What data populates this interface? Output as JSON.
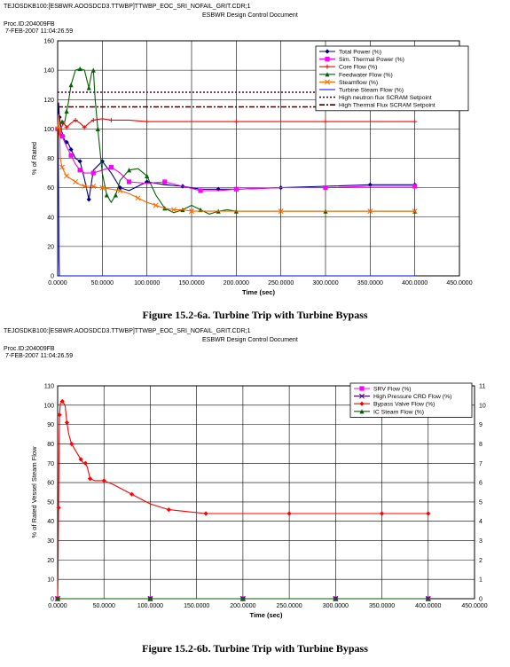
{
  "document": {
    "chart_a": {
      "header_path": "TEJOSDKB100:[ESBWR.AOOSDCD3.TTWBP]TTWBP_EOC_SRI_NOFAIL_GRIT.CDR;1",
      "header_doc": "ESBWR Design Control Document",
      "header_proc": "Proc.ID:204009FB",
      "header_date": " 7-FEB-2007 11:04:26.59",
      "caption": "Figure 15.2-6a.  Turbine Trip with Turbine Bypass"
    },
    "chart_b": {
      "header_path": "TEJOSDKB100:[ESBWR.AOOSDCD3.TTWBP]TTWBP_EOC_SRI_NOFAIL_GRIT.CDR;1",
      "header_doc": "ESBWR Design Control Document",
      "header_proc": "Proc.ID:204009FB",
      "header_date": " 7-FEB-2007 11:04:26.59",
      "caption": "Figure 15.2-6b.  Turbine Trip with Turbine Bypass"
    }
  },
  "chart_data": [
    {
      "type": "line",
      "xlabel": "Time (sec)",
      "ylabel": "% of Rated",
      "xlim": [
        0,
        450
      ],
      "ylim": [
        0,
        160
      ],
      "x_ticks": [
        "0.0000",
        "50.0000",
        "100.0000",
        "150.0000",
        "200.0000",
        "250.0000",
        "300.0000",
        "350.0000",
        "400.0000",
        "450.0000"
      ],
      "y_ticks": [
        "0",
        "20",
        "40",
        "60",
        "80",
        "100",
        "120",
        "140",
        "160"
      ],
      "grid": true,
      "legend_position": "top-right",
      "series": [
        {
          "name": "Total Power (%)",
          "color": "#000080",
          "marker": "diamond",
          "x": [
            0,
            1,
            2,
            4,
            6,
            8,
            10,
            12,
            15,
            20,
            25,
            30,
            35,
            40,
            50,
            60,
            70,
            80,
            100,
            120,
            140,
            160,
            180,
            200,
            250,
            300,
            350,
            400
          ],
          "y": [
            100,
            118,
            108,
            100,
            95,
            92,
            91,
            90,
            86,
            80,
            78,
            66,
            52,
            72,
            78,
            70,
            60,
            58,
            64,
            62,
            61,
            59,
            59,
            59,
            60,
            61,
            62,
            62
          ]
        },
        {
          "name": "Sim. Thermal Power (%)",
          "color": "#ff00ff",
          "marker": "square",
          "x": [
            0,
            2,
            5,
            10,
            15,
            20,
            25,
            30,
            40,
            50,
            60,
            70,
            80,
            100,
            120,
            140,
            160,
            180,
            200,
            250,
            300,
            350,
            400
          ],
          "y": [
            100,
            99,
            95,
            88,
            82,
            76,
            72,
            70,
            70,
            72,
            74,
            70,
            64,
            63,
            64,
            61,
            58,
            58,
            59,
            60,
            60,
            61,
            61
          ]
        },
        {
          "name": "Core Flow (%)",
          "color": "#ff0000",
          "marker": "plus",
          "x": [
            0,
            1,
            2,
            4,
            6,
            8,
            10,
            15,
            20,
            25,
            30,
            35,
            40,
            50,
            60,
            80,
            100,
            150,
            200,
            250,
            300,
            350,
            400
          ],
          "y": [
            100,
            98,
            96,
            100,
            104,
            103,
            101,
            104,
            106,
            104,
            101,
            104,
            106,
            107,
            106,
            106,
            105,
            105,
            105,
            105,
            105,
            105,
            105
          ]
        },
        {
          "name": "Feedwater Flow (%)",
          "color": "#006400",
          "marker": "triangle",
          "x": [
            0,
            2,
            5,
            8,
            10,
            12,
            15,
            20,
            25,
            30,
            35,
            38,
            40,
            42,
            45,
            50,
            55,
            60,
            65,
            70,
            80,
            90,
            100,
            110,
            120,
            130,
            140,
            150,
            160,
            170,
            180,
            190,
            200,
            250,
            300,
            350,
            400
          ],
          "y": [
            100,
            103,
            105,
            105,
            112,
            118,
            130,
            140,
            141,
            140,
            128,
            138,
            140,
            120,
            100,
            70,
            55,
            50,
            55,
            65,
            72,
            73,
            68,
            55,
            46,
            43,
            45,
            48,
            45,
            42,
            44,
            45,
            44,
            44,
            44,
            44,
            44
          ]
        },
        {
          "name": "Steamflow (%)",
          "color": "#ff6600",
          "marker": "x",
          "x": [
            0,
            1,
            2,
            3,
            5,
            8,
            10,
            15,
            20,
            25,
            30,
            35,
            40,
            45,
            50,
            60,
            70,
            80,
            90,
            100,
            110,
            120,
            130,
            140,
            150,
            200,
            250,
            300,
            350,
            400
          ],
          "y": [
            100,
            110,
            100,
            80,
            74,
            70,
            68,
            66,
            64,
            62,
            61,
            61,
            61,
            60,
            60,
            59,
            58,
            56,
            53,
            50,
            48,
            46,
            45,
            45,
            44,
            44,
            44,
            44,
            44,
            44
          ]
        },
        {
          "name": "Turbine Steam Flow (%)",
          "color": "#0000ff",
          "marker": "none",
          "x": [
            0,
            0.5,
            1,
            1.5,
            2,
            3,
            400
          ],
          "y": [
            100,
            100,
            60,
            10,
            0,
            0,
            0
          ]
        },
        {
          "name": "High neutron flux SCRAM Setpoint",
          "color": "#400040",
          "dash": "dotted",
          "x": [
            0,
            400
          ],
          "y": [
            125,
            125
          ]
        },
        {
          "name": "High Thermal Flux SCRAM Setpoint",
          "color": "#400000",
          "dash": "dashdot",
          "x": [
            0,
            400
          ],
          "y": [
            115,
            115
          ]
        }
      ]
    },
    {
      "type": "line",
      "xlabel": "Time (sec)",
      "ylabel": "% of Rated Vessel Steam Flow",
      "xlim": [
        0,
        450
      ],
      "ylim": [
        0,
        110
      ],
      "y2lim": [
        0,
        11
      ],
      "x_ticks": [
        "0.0000",
        "50.0000",
        "100.0000",
        "150.0000",
        "200.0000",
        "250.0000",
        "300.0000",
        "350.0000",
        "400.0000",
        "450.0000"
      ],
      "y_ticks": [
        "0",
        "10",
        "20",
        "30",
        "40",
        "50",
        "60",
        "70",
        "80",
        "90",
        "100",
        "110"
      ],
      "y2_ticks": [
        "0",
        "1",
        "2",
        "3",
        "4",
        "5",
        "6",
        "7",
        "8",
        "9",
        "10",
        "11"
      ],
      "grid": true,
      "legend_position": "top-right",
      "series": [
        {
          "name": "SRV Flow (%)",
          "color": "#ff00ff",
          "marker": "square",
          "x": [
            0,
            50,
            100,
            150,
            200,
            250,
            300,
            350,
            400
          ],
          "y": [
            0,
            0,
            0,
            0,
            0,
            0,
            0,
            0,
            0
          ]
        },
        {
          "name": "High Pressure CRD Flow (%)",
          "color": "#400080",
          "marker": "x",
          "x": [
            0,
            50,
            100,
            150,
            200,
            250,
            300,
            350,
            400
          ],
          "y": [
            0,
            0,
            0,
            0,
            0,
            0,
            0,
            0,
            0
          ]
        },
        {
          "name": "Bypass Valve Flow (%)",
          "color": "#ff0000",
          "marker": "diamond",
          "x": [
            0,
            0.5,
            1,
            1.5,
            2,
            3,
            5,
            8,
            10,
            12,
            15,
            20,
            25,
            28,
            30,
            32,
            35,
            40,
            50,
            60,
            80,
            100,
            120,
            140,
            160,
            200,
            250,
            300,
            350,
            400
          ],
          "y": [
            0,
            14,
            47,
            78,
            95,
            101,
            102,
            100,
            91,
            85,
            80,
            76,
            72,
            70,
            70,
            68,
            62,
            61,
            61,
            59,
            54,
            49,
            46,
            45,
            44,
            44,
            44,
            44,
            44,
            44
          ]
        },
        {
          "name": "IC Steam Flow (%)",
          "color": "#006400",
          "marker": "triangle",
          "x": [
            0,
            50,
            100,
            150,
            200,
            250,
            300,
            350,
            400
          ],
          "y": [
            0,
            0,
            0,
            0,
            0,
            0,
            0,
            0,
            0
          ]
        }
      ]
    }
  ]
}
